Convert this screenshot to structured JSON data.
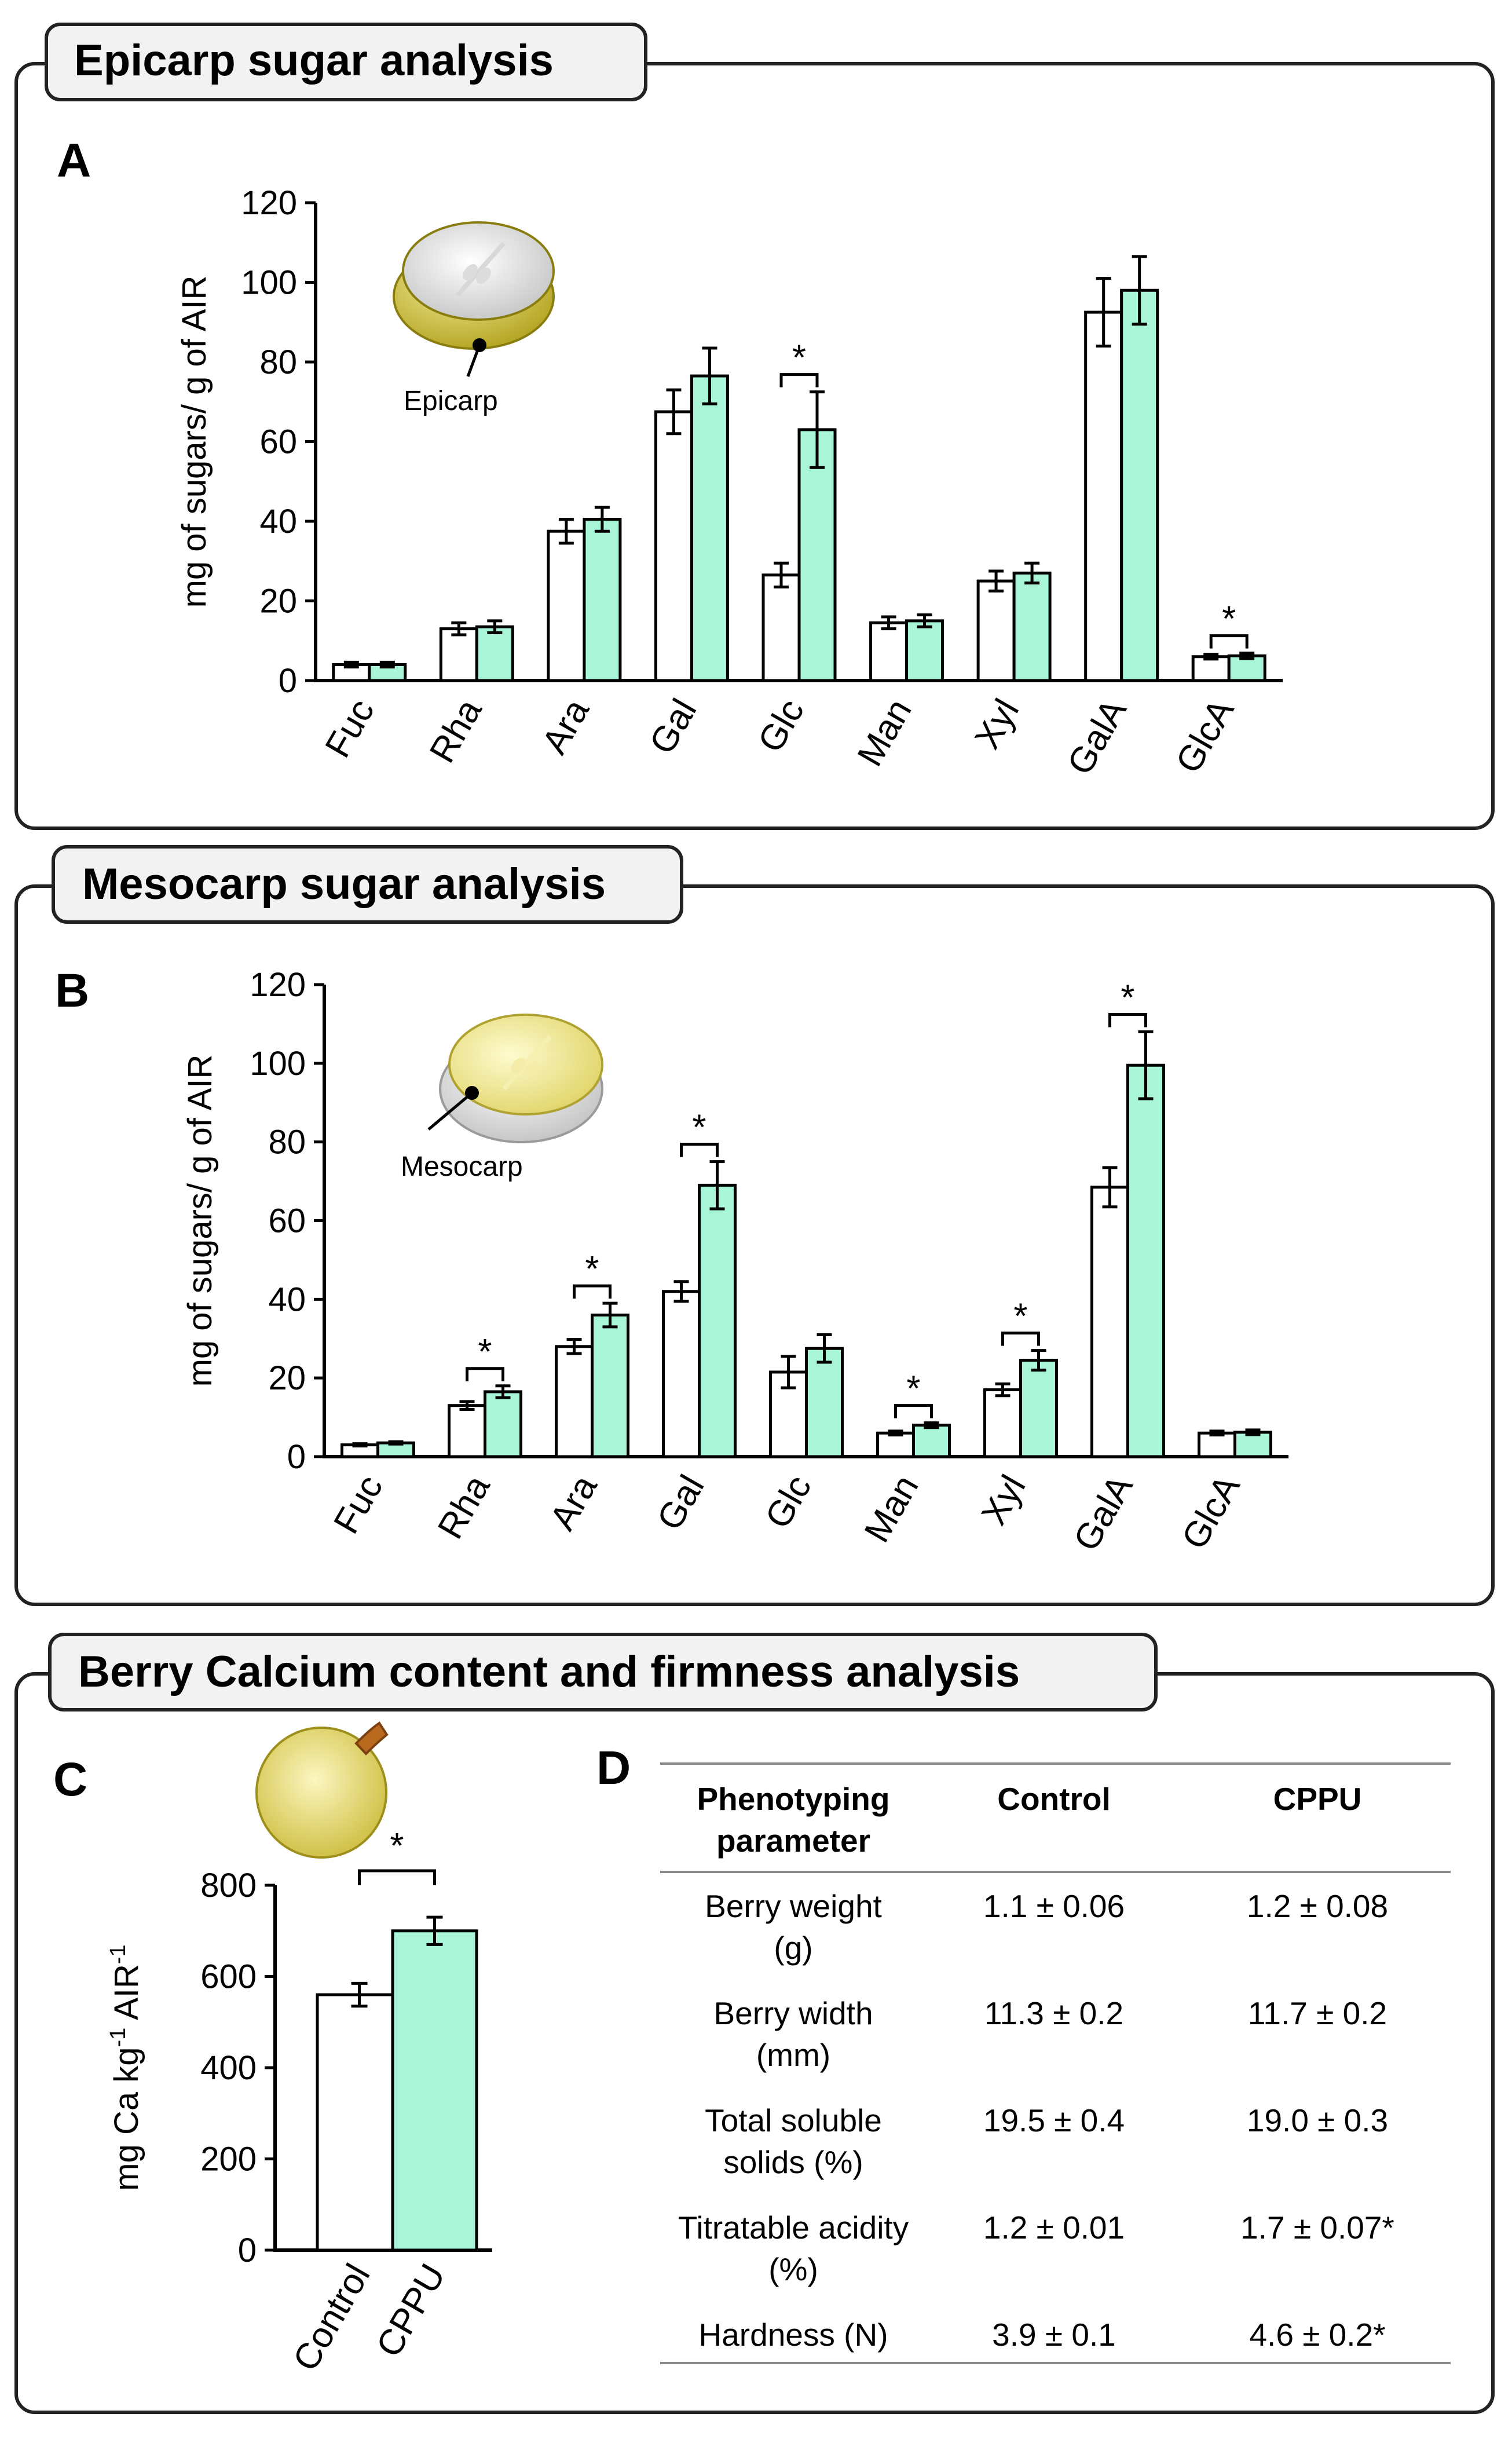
{
  "panels": {
    "epicarp_title": "Epicarp sugar analysis",
    "mesocarp_title": "Mesocarp sugar analysis",
    "berry_title": "Berry Calcium content and firmness analysis"
  },
  "fruit_labels": {
    "epicarp": "Epicarp",
    "mesocarp": "Mesocarp"
  },
  "colors": {
    "control": "#ffffff",
    "cppu": "#a8f5d8",
    "frame": "#222222",
    "title_bg": "#f2f2f2"
  },
  "chart_data": [
    {
      "panel": "A",
      "type": "bar",
      "title": "Epicarp sugar analysis",
      "ylabel": "mg of sugars/ g of AIR",
      "ylim": [
        0,
        120
      ],
      "yticks": [
        0,
        20,
        40,
        60,
        80,
        100,
        120
      ],
      "categories": [
        "Fuc",
        "Rha",
        "Ara",
        "Gal",
        "Glc",
        "Man",
        "Xyl",
        "GalA",
        "GlcA"
      ],
      "series": [
        {
          "name": "Control",
          "values": [
            4,
            13,
            37.5,
            67.5,
            26.5,
            14.5,
            25,
            92.5,
            6
          ],
          "errors": [
            0.6,
            1.5,
            3,
            5.5,
            3,
            1.5,
            2.5,
            8.5,
            0.6
          ]
        },
        {
          "name": "CPPU",
          "values": [
            4,
            13.5,
            40.5,
            76.5,
            63,
            15,
            27,
            98,
            6.2
          ],
          "errors": [
            0.6,
            1.5,
            3,
            7,
            9.5,
            1.5,
            2.5,
            8.5,
            0.7
          ]
        }
      ],
      "significant": [
        "",
        "",
        "",
        "",
        "*",
        "",
        "",
        "",
        "*"
      ]
    },
    {
      "panel": "B",
      "type": "bar",
      "title": "Mesocarp sugar analysis",
      "ylabel": "mg of sugars/ g of AIR",
      "ylim": [
        0,
        120
      ],
      "yticks": [
        0,
        20,
        40,
        60,
        80,
        100,
        120
      ],
      "categories": [
        "Fuc",
        "Rha",
        "Ara",
        "Gal",
        "Glc",
        "Man",
        "Xyl",
        "GalA",
        "GlcA"
      ],
      "series": [
        {
          "name": "Control",
          "values": [
            3,
            13,
            28,
            42,
            21.5,
            6,
            17,
            68.5,
            6
          ],
          "errors": [
            0.3,
            1,
            1.8,
            2.5,
            4,
            0.5,
            1.5,
            5,
            0.5
          ]
        },
        {
          "name": "CPPU",
          "values": [
            3.5,
            16.5,
            36,
            69,
            27.5,
            8,
            24.5,
            99.5,
            6.2
          ],
          "errors": [
            0.3,
            1.5,
            3,
            6,
            3.5,
            0.6,
            2.5,
            8.5,
            0.6
          ]
        }
      ],
      "significant": [
        "",
        "*",
        "*",
        "*",
        "",
        "*",
        "*",
        "*",
        ""
      ]
    },
    {
      "panel": "C",
      "type": "bar",
      "title": "Berry Calcium content",
      "ylabel_main": "mg Ca kg",
      "ylabel_sup1": "-1",
      "ylabel_mid": " AIR",
      "ylabel_sup2": "-1",
      "ylim": [
        0,
        800
      ],
      "yticks": [
        0,
        200,
        400,
        600,
        800
      ],
      "categories": [
        "Control",
        "CPPU"
      ],
      "values": [
        560,
        700
      ],
      "errors": [
        25,
        30
      ],
      "significant": "*"
    },
    {
      "panel": "D",
      "type": "table",
      "headers": [
        "Phenotyping parameter",
        "Control",
        "CPPU"
      ],
      "rows": [
        {
          "parameter": "Berry weight (g)",
          "control": "1.1 ± 0.06",
          "cppu": "1.2 ± 0.08"
        },
        {
          "parameter": "Berry width (mm)",
          "control": "11.3 ± 0.2",
          "cppu": "11.7 ± 0.2"
        },
        {
          "parameter": "Total soluble solids (%)",
          "control": "19.5 ± 0.4",
          "cppu": "19.0 ± 0.3"
        },
        {
          "parameter": "Titratable acidity (%)",
          "control": "1.2 ± 0.01",
          "cppu": "1.7 ± 0.07*"
        },
        {
          "parameter": "Hardness (N)",
          "control": "3.9 ± 0.1",
          "cppu": "4.6 ± 0.2*"
        }
      ]
    }
  ]
}
